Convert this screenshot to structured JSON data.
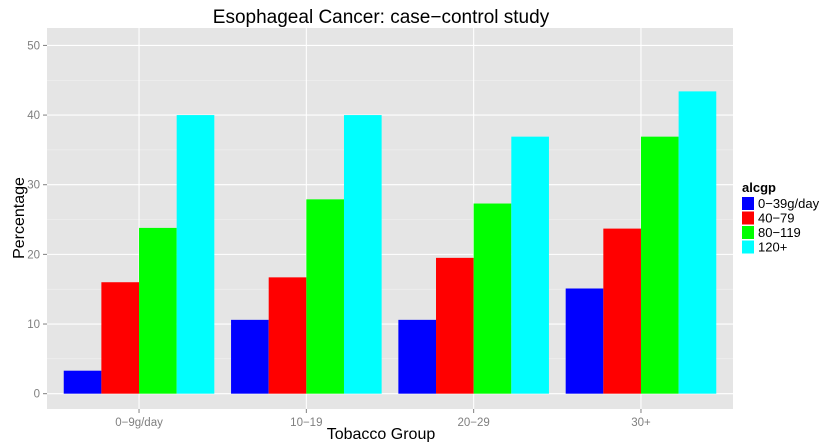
{
  "chart_data": {
    "type": "bar",
    "title": "Esophageal Cancer: case−control study",
    "xlabel": "Tobacco Group",
    "ylabel": "Percentage",
    "categories": [
      "0−9g/day",
      "10−19",
      "20−29",
      "30+"
    ],
    "series": [
      {
        "name": "0−39g/day",
        "color": "#0000ff",
        "values": [
          3.3,
          10.6,
          10.6,
          15.1
        ]
      },
      {
        "name": "40−79",
        "color": "#ff0000",
        "values": [
          16.0,
          16.7,
          19.5,
          23.7
        ]
      },
      {
        "name": "80−119",
        "color": "#00ff00",
        "values": [
          23.8,
          27.9,
          27.3,
          36.9
        ]
      },
      {
        "name": "120+",
        "color": "#00ffff",
        "values": [
          40.0,
          40.0,
          36.9,
          43.4
        ]
      }
    ],
    "ylim": [
      -2.2,
      52.5
    ],
    "yticks": [
      0,
      10,
      20,
      30,
      40,
      50
    ],
    "grid": true,
    "legend": {
      "title": "alcgp",
      "position": "right"
    },
    "panel_background": "#e5e5e5",
    "grid_color": "#ffffff"
  }
}
